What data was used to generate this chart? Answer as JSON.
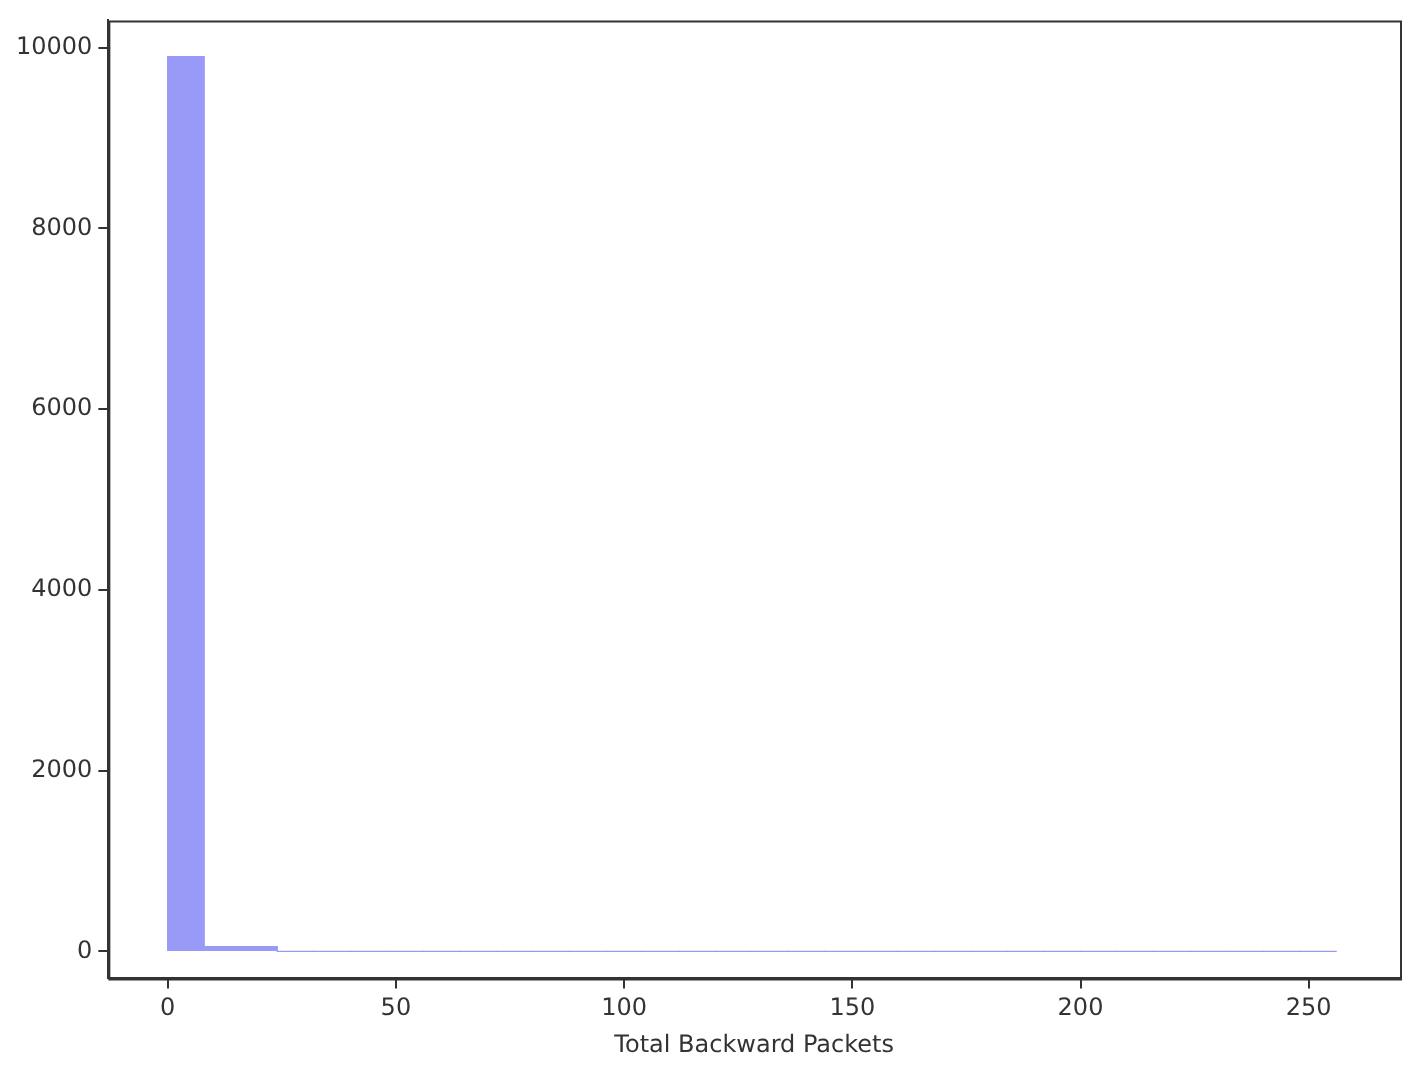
{
  "chart_data": {
    "type": "histogram",
    "xlabel": "Total Backward Packets",
    "bins": [
      0,
      8,
      16,
      24,
      32,
      40,
      48,
      56,
      64,
      72,
      80,
      88,
      96,
      104,
      112,
      120,
      128,
      136,
      144,
      152,
      160,
      168,
      176,
      184,
      192,
      200,
      208,
      216,
      224,
      232,
      240,
      248,
      256
    ],
    "values": [
      9900,
      50,
      50,
      0,
      0,
      0,
      0,
      0,
      0,
      0,
      0,
      0,
      0,
      0,
      0,
      0,
      0,
      0,
      0,
      0,
      0,
      0,
      0,
      0,
      0,
      0,
      0,
      0,
      0,
      0,
      0,
      0
    ],
    "color": "#9999f8",
    "xlim": [
      -13,
      270
    ],
    "xticks": [
      0,
      50,
      100,
      150,
      200,
      250
    ],
    "ylim": [
      -300,
      10300
    ],
    "yticks": [
      0,
      2000,
      4000,
      6000,
      8000,
      10000
    ],
    "grid": false,
    "legend": false
  }
}
